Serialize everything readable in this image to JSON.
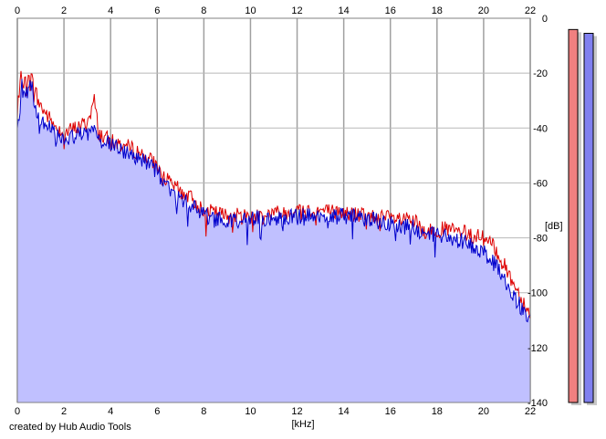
{
  "chart_data": {
    "type": "area",
    "title": "",
    "xlabel": "[kHz]",
    "ylabel": "[dB]",
    "xlim": [
      0,
      22
    ],
    "ylim": [
      -140,
      0
    ],
    "x_ticks": [
      0,
      2,
      4,
      6,
      8,
      10,
      12,
      14,
      16,
      18,
      20,
      22
    ],
    "y_ticks": [
      0,
      -20,
      -40,
      -60,
      -80,
      -100,
      -120,
      -140
    ],
    "grid": true,
    "series": [
      {
        "color": "#dd0000",
        "x": [
          0,
          0.2,
          0.4,
          0.6,
          0.8,
          1,
          1.5,
          2,
          2.5,
          3,
          3.3,
          3.5,
          4,
          4.5,
          5,
          5.5,
          6,
          6.5,
          7,
          7.5,
          8,
          9,
          10,
          11,
          12,
          13,
          14,
          15,
          16,
          17,
          17.5,
          18,
          18.5,
          19,
          19.5,
          20,
          20.5,
          21,
          21.5,
          22
        ],
        "values": [
          -35,
          -20,
          -25,
          -22,
          -28,
          -32,
          -38,
          -42,
          -40,
          -38,
          -30,
          -42,
          -45,
          -46,
          -48,
          -50,
          -54,
          -60,
          -63,
          -66,
          -70,
          -72,
          -72,
          -71,
          -70,
          -70,
          -71,
          -72,
          -73,
          -74,
          -78,
          -77,
          -77,
          -78,
          -79,
          -80,
          -84,
          -92,
          -100,
          -108
        ]
      },
      {
        "color": "#0000cc",
        "x": [
          0,
          0.2,
          0.4,
          0.6,
          0.8,
          1,
          1.5,
          2,
          2.5,
          3,
          3.3,
          3.5,
          4,
          4.5,
          5,
          5.5,
          6,
          6.5,
          7,
          7.5,
          8,
          9,
          10,
          11,
          12,
          13,
          14,
          15,
          16,
          17,
          17.5,
          18,
          18.5,
          19,
          19.5,
          20,
          20.5,
          21,
          21.5,
          22
        ],
        "values": [
          -40,
          -25,
          -28,
          -26,
          -32,
          -36,
          -41,
          -44,
          -43,
          -42,
          -38,
          -44,
          -46,
          -48,
          -50,
          -52,
          -56,
          -62,
          -66,
          -68,
          -72,
          -74,
          -73,
          -73,
          -72,
          -72,
          -72,
          -73,
          -75,
          -76,
          -79,
          -79,
          -80,
          -81,
          -83,
          -85,
          -90,
          -97,
          -104,
          -110
        ]
      }
    ],
    "fill_color": "#c0c0ff",
    "meters": [
      {
        "color": "#f08080",
        "level": 0.98
      },
      {
        "color": "#8080f0",
        "level": 0.97
      }
    ]
  },
  "credit": "created by Hub Audio Tools"
}
